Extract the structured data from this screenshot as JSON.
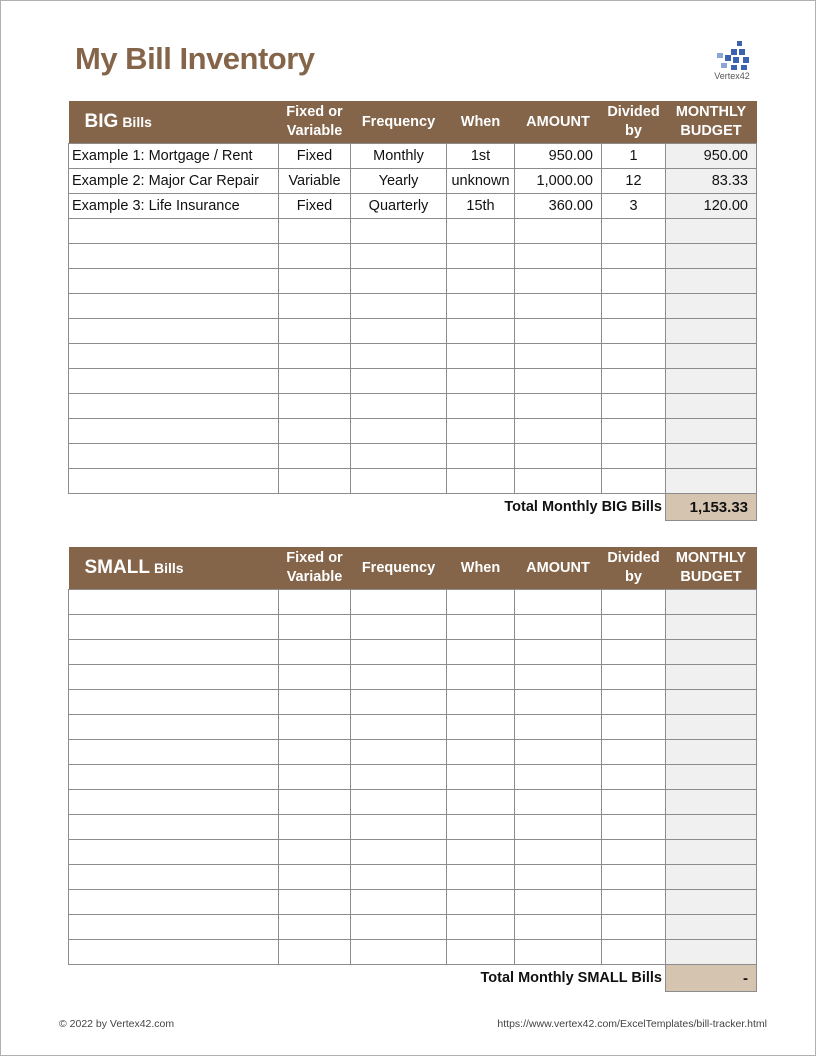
{
  "title": "My Bill Inventory",
  "logo": "Vertex42",
  "colors": {
    "header": "#84654a",
    "total": "#d5c4b0",
    "budget_col": "#f0f0f0"
  },
  "columns": [
    "Fixed or Variable",
    "Frequency",
    "When",
    "AMOUNT",
    "Divided by",
    "MONTHLY BUDGET"
  ],
  "big": {
    "title_big": "BIG",
    "title_small": "Bills",
    "rows": [
      [
        "Example 1: Mortgage / Rent",
        "Fixed",
        "Monthly",
        "1st",
        "950.00",
        "1",
        "950.00"
      ],
      [
        "Example 2: Major Car Repair",
        "Variable",
        "Yearly",
        "unknown",
        "1,000.00",
        "12",
        "83.33"
      ],
      [
        "Example 3: Life Insurance",
        "Fixed",
        "Quarterly",
        "15th",
        "360.00",
        "3",
        "120.00"
      ]
    ],
    "empty_rows": 11,
    "total_label": "Total Monthly BIG Bills",
    "total_value": "1,153.33"
  },
  "small": {
    "title_big": "SMALL",
    "title_small": "Bills",
    "rows": [],
    "empty_rows": 15,
    "total_label": "Total Monthly SMALL Bills",
    "total_value": "-"
  },
  "footer": {
    "left": "© 2022 by Vertex42.com",
    "right": "https://www.vertex42.com/ExcelTemplates/bill-tracker.html"
  }
}
